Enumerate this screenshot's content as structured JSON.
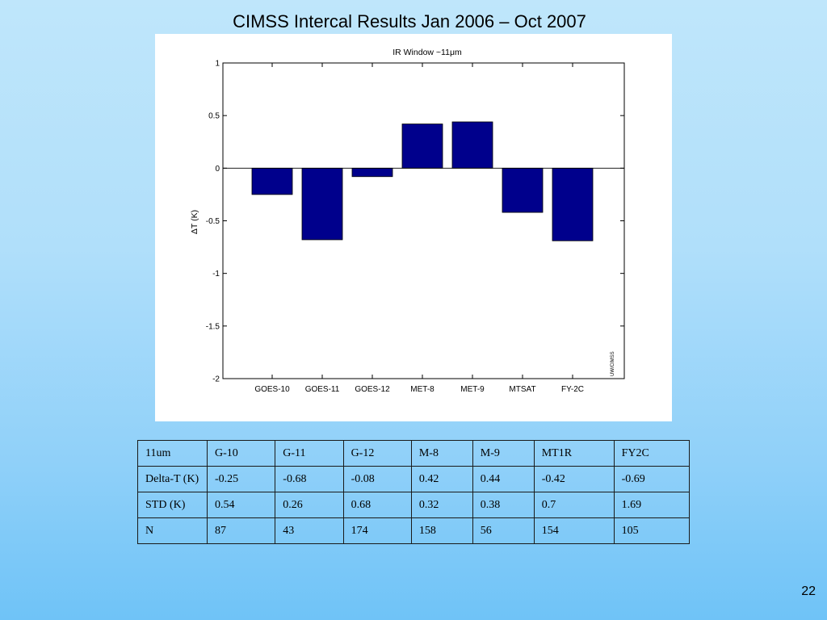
{
  "slide": {
    "title": "CIMSS Intercal Results Jan 2006 – Oct 2007",
    "page_number": "22"
  },
  "chart_data": {
    "type": "bar",
    "title": "IR Window ~11μm",
    "xlabel": "",
    "ylabel": "ΔT (K)",
    "categories": [
      "GOES-10",
      "GOES-11",
      "GOES-12",
      "MET-8",
      "MET-9",
      "MTSAT",
      "FY-2C"
    ],
    "values": [
      -0.25,
      -0.68,
      -0.08,
      0.42,
      0.44,
      -0.42,
      -0.69
    ],
    "ylim": [
      -2,
      1
    ],
    "yticks": [
      "1",
      "0.5",
      "0",
      "-0.5",
      "-1",
      "-1.5",
      "-2"
    ],
    "bar_color": "#00008c",
    "watermark": "UW/CIMSS",
    "grid": false,
    "legend": "none"
  },
  "table": {
    "header": [
      "11um",
      "G-10",
      "G-11",
      "G-12",
      "M-8",
      "M-9",
      "MT1R",
      "FY2C"
    ],
    "rows": [
      [
        "Delta-T (K)",
        "-0.25",
        "-0.68",
        "-0.08",
        "0.42",
        "0.44",
        "-0.42",
        "-0.69"
      ],
      [
        "STD (K)",
        "0.54",
        "0.26",
        "0.68",
        "0.32",
        "0.38",
        "0.7",
        "1.69"
      ],
      [
        "N",
        "87",
        "43",
        "174",
        "158",
        "56",
        "154",
        "105"
      ]
    ]
  }
}
